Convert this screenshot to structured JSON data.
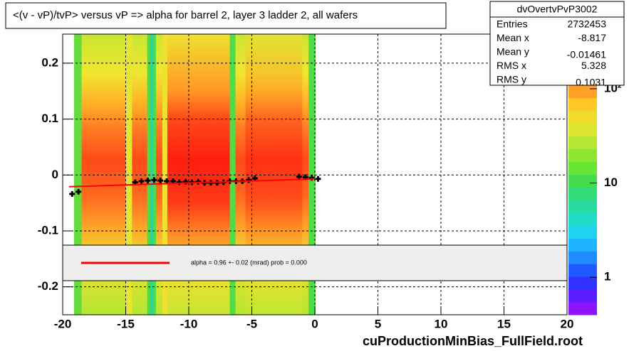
{
  "chart_data": {
    "type": "profile2d",
    "title": "<(v - vP)/tvP> versus   vP => alpha for barrel 2, layer 3 ladder 2, all wafers",
    "x_label": "cuProductionMinBias_FullField.root",
    "xlim": [
      -20,
      20
    ],
    "xticks": [
      -20,
      -15,
      -10,
      -5,
      0,
      5,
      10,
      15,
      20
    ],
    "ylim": [
      -0.25,
      0.252
    ],
    "yticks": [
      -0.2,
      -0.1,
      0,
      0.1,
      0.2
    ],
    "zlim": [
      0.4,
      380
    ],
    "zticks": [
      1,
      10,
      {
        "value": 100,
        "label": "10²"
      }
    ],
    "log_z": true,
    "grid": true,
    "stats": {
      "name": "dvOvertvPvP3002",
      "rows": [
        [
          "Entries",
          "2732453"
        ],
        [
          "Mean x",
          "-8.817"
        ],
        [
          "Mean y",
          "-0.01461"
        ],
        [
          "RMS x",
          "5.328"
        ],
        [
          "RMS y",
          "0.1031"
        ]
      ]
    },
    "fit_label": "alpha =    0.96 +-  0.02 (mrad) prob = 0.000",
    "series": [
      {
        "name": "profile",
        "color": "#000000",
        "x": [
          -19.25,
          -18.75,
          -14.25,
          -13.75,
          -13.25,
          -12.75,
          -12.25,
          -11.75,
          -11.25,
          -10.75,
          -10.25,
          -9.75,
          -9.25,
          -8.75,
          -8.25,
          -7.75,
          -7.25,
          -6.75,
          -6.25,
          -5.75,
          -5.25,
          -4.75,
          -1.25,
          -0.75,
          -0.25,
          0.25
        ],
        "values": [
          -0.034,
          -0.03,
          -0.013,
          -0.011,
          -0.01,
          -0.009,
          -0.01,
          -0.011,
          -0.011,
          -0.013,
          -0.012,
          -0.013,
          -0.012,
          -0.014,
          -0.014,
          -0.014,
          -0.013,
          -0.011,
          -0.011,
          -0.011,
          -0.009,
          -0.006,
          -0.003,
          -0.004,
          -0.005,
          -0.007
        ]
      },
      {
        "name": "fit",
        "color": "#ff0000",
        "x": [
          -19.5,
          0
        ],
        "values": [
          -0.021,
          -0.007
        ]
      }
    ]
  }
}
